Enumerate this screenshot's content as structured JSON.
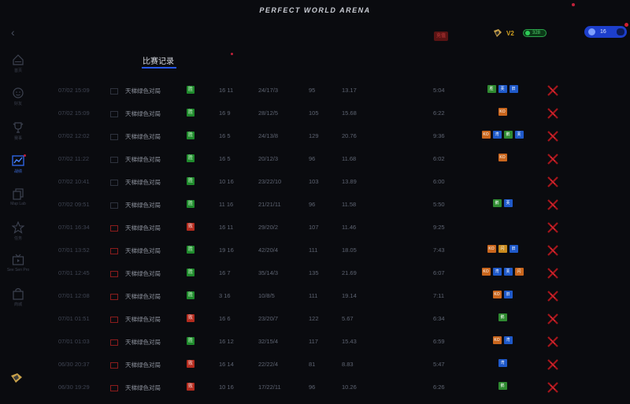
{
  "app": {
    "title": "PERFECT WORLD ARENA"
  },
  "header": {
    "v_label": "V2",
    "points": "328",
    "user_value": "16",
    "red_chip": "充值"
  },
  "sidebar": {
    "items": [
      {
        "icon": "home-icon",
        "label": "首页"
      },
      {
        "icon": "face-icon",
        "label": "好友"
      },
      {
        "icon": "trophy-icon",
        "label": "赛事"
      },
      {
        "icon": "stats-icon",
        "label": "战绩"
      },
      {
        "icon": "copy-icon",
        "label": "Map Lab"
      },
      {
        "icon": "star-icon",
        "label": "任务"
      },
      {
        "icon": "tv-icon",
        "label": "See Sen Pro"
      },
      {
        "icon": "bag-icon",
        "label": "商城"
      }
    ]
  },
  "tabs": {
    "active": "比赛记录"
  },
  "colors": {
    "accent": "#2657e8",
    "win": "#1f8a2c",
    "loss": "#b42b1e"
  },
  "rows": [
    {
      "date": "07/02 15:09",
      "map": "天梯绿色对局",
      "result": "胜",
      "score_a": "16",
      "score_b": "11",
      "kda": "24/17/3",
      "adr": "95",
      "rating": "13.17",
      "time": "5:04",
      "badges": [
        [
          "b-green",
          "胜"
        ],
        [
          "b-blue",
          "芙"
        ],
        [
          "b-blue",
          "旧"
        ]
      ],
      "map_red": false
    },
    {
      "date": "07/02 15:09",
      "map": "天梯绿色对局",
      "result": "胜",
      "score_a": "16",
      "score_b": "9",
      "kda": "28/12/5",
      "adr": "105",
      "rating": "15.68",
      "time": "6:22",
      "badges": [
        [
          "b-orange",
          "KO"
        ]
      ],
      "map_red": false
    },
    {
      "date": "07/02 12:02",
      "map": "天梯绿色对局",
      "result": "胜",
      "score_a": "16",
      "score_b": "5",
      "kda": "24/13/8",
      "adr": "129",
      "rating": "20.76",
      "time": "9:36",
      "badges": [
        [
          "b-orange",
          "KO"
        ],
        [
          "b-blue",
          "湾"
        ],
        [
          "b-green",
          "鹅"
        ],
        [
          "b-blue",
          "芙"
        ]
      ],
      "map_red": false
    },
    {
      "date": "07/02 11:22",
      "map": "天梯绿色对局",
      "result": "胜",
      "score_a": "16",
      "score_b": "5",
      "kda": "20/12/3",
      "adr": "96",
      "rating": "11.68",
      "time": "6:02",
      "badges": [
        [
          "b-orange",
          "KO"
        ]
      ],
      "map_red": false
    },
    {
      "date": "07/02 10:41",
      "map": "天梯绿色对局",
      "result": "胜",
      "score_a": "10",
      "score_b": "16",
      "kda": "23/22/10",
      "adr": "103",
      "rating": "13.89",
      "time": "6:00",
      "badges": [],
      "map_red": false
    },
    {
      "date": "07/02 09:51",
      "map": "天梯绿色对局",
      "result": "胜",
      "score_a": "11",
      "score_b": "16",
      "kda": "21/21/11",
      "adr": "96",
      "rating": "11.58",
      "time": "5:50",
      "badges": [
        [
          "b-green",
          "鹅"
        ],
        [
          "b-blue",
          "芙"
        ]
      ],
      "map_red": false
    },
    {
      "date": "07/01 16:34",
      "map": "天梯绿色对局",
      "result": "败",
      "score_a": "16",
      "score_b": "11",
      "kda": "29/20/2",
      "adr": "107",
      "rating": "11.46",
      "time": "9:25",
      "badges": [],
      "map_red": true
    },
    {
      "date": "07/01 13:52",
      "map": "天梯绿色对局",
      "result": "胜",
      "score_a": "19",
      "score_b": "16",
      "kda": "42/20/4",
      "adr": "111",
      "rating": "18.05",
      "time": "7:43",
      "badges": [
        [
          "b-orange",
          "KO"
        ],
        [
          "b-gold",
          "闪"
        ],
        [
          "b-blue",
          "旧"
        ]
      ],
      "map_red": true
    },
    {
      "date": "07/01 12:45",
      "map": "天梯绿色对局",
      "result": "胜",
      "score_a": "16",
      "score_b": "7",
      "kda": "35/14/3",
      "adr": "135",
      "rating": "21.69",
      "time": "6:07",
      "badges": [
        [
          "b-orange",
          "KO"
        ],
        [
          "b-blue",
          "湾"
        ],
        [
          "b-blue",
          "芙"
        ],
        [
          "b-orange",
          "闪"
        ]
      ],
      "map_red": true
    },
    {
      "date": "07/01 12:08",
      "map": "天梯绿色对局",
      "result": "胜",
      "score_a": "3",
      "score_b": "16",
      "kda": "10/8/5",
      "adr": "111",
      "rating": "19.14",
      "time": "7:11",
      "badges": [
        [
          "b-orange",
          "KO"
        ],
        [
          "b-blue",
          "旧"
        ]
      ],
      "map_red": true
    },
    {
      "date": "07/01 01:51",
      "map": "天梯绿色对局",
      "result": "败",
      "score_a": "16",
      "score_b": "6",
      "kda": "23/20/7",
      "adr": "122",
      "rating": "5.67",
      "time": "6:34",
      "badges": [
        [
          "b-green",
          "鹅"
        ]
      ],
      "map_red": true
    },
    {
      "date": "07/01 01:03",
      "map": "天梯绿色对局",
      "result": "胜",
      "score_a": "16",
      "score_b": "12",
      "kda": "32/15/4",
      "adr": "117",
      "rating": "15.43",
      "time": "6:59",
      "badges": [
        [
          "b-orange",
          "KO"
        ],
        [
          "b-blue",
          "湾"
        ]
      ],
      "map_red": true
    },
    {
      "date": "06/30 20:37",
      "map": "天梯绿色对局",
      "result": "败",
      "score_a": "16",
      "score_b": "14",
      "kda": "22/22/4",
      "adr": "81",
      "rating": "8.83",
      "time": "5:47",
      "badges": [
        [
          "b-blue",
          "湾"
        ]
      ],
      "map_red": true
    },
    {
      "date": "06/30 19:29",
      "map": "天梯绿色对局",
      "result": "败",
      "score_a": "10",
      "score_b": "16",
      "kda": "17/22/11",
      "adr": "96",
      "rating": "10.26",
      "time": "6:26",
      "badges": [
        [
          "b-green",
          "鹅"
        ]
      ],
      "map_red": true
    }
  ]
}
